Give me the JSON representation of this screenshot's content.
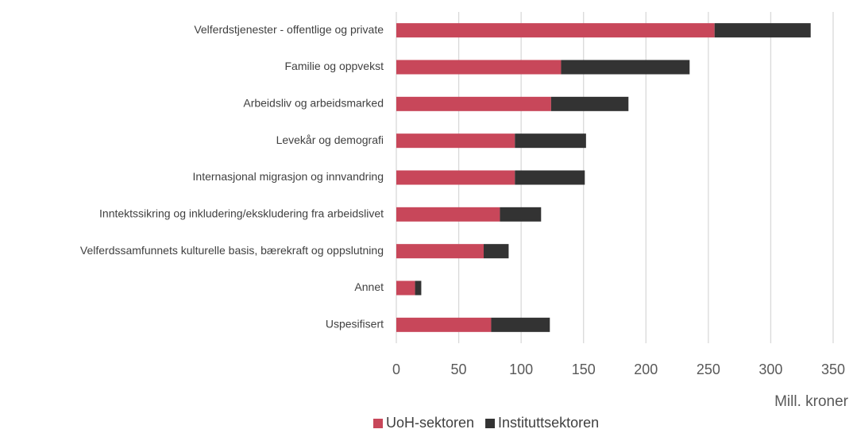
{
  "chart_data": {
    "type": "stacked_barh",
    "categories": [
      "Velferdstjenester - offentlige og private",
      "Familie og oppvekst",
      "Arbeidsliv og arbeidsmarked",
      "Levekår og demografi",
      "Internasjonal migrasjon og innvandring",
      "Inntektssikring og inkludering/ekskludering fra arbeidslivet",
      "Velferdssamfunnets kulturelle basis, bærekraft og oppslutning",
      "Annet",
      "Uspesifisert"
    ],
    "series": [
      {
        "name": "UoH-sektoren",
        "color": "#c8475a",
        "values": [
          255,
          132,
          124,
          95,
          95,
          83,
          70,
          15,
          76
        ]
      },
      {
        "name": "Instituttsektoren",
        "color": "#333333",
        "values": [
          77,
          103,
          62,
          57,
          56,
          33,
          20,
          5,
          47
        ]
      }
    ],
    "xlim": [
      0,
      350
    ],
    "xticks": [
      0,
      50,
      100,
      150,
      200,
      250,
      300,
      350
    ],
    "x_label": "Mill. kroner",
    "grid": true,
    "legend": "bottom"
  }
}
